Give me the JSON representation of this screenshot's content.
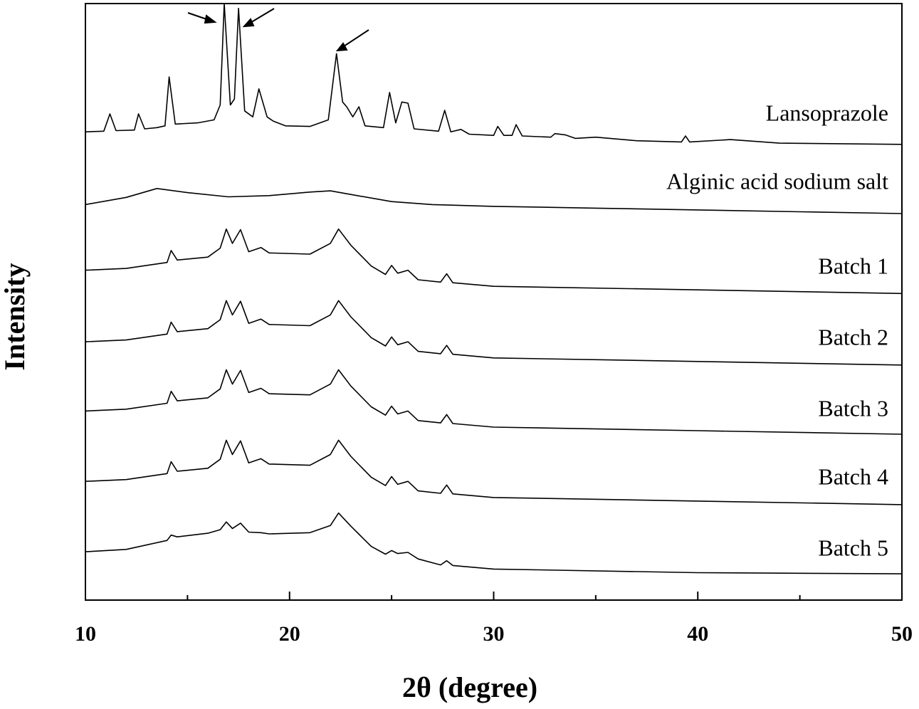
{
  "chart_data": {
    "type": "line",
    "xlabel": "2θ (degree)",
    "ylabel": "Intensity",
    "xlim": [
      10,
      50
    ],
    "xticks": [
      10,
      20,
      30,
      40,
      50
    ],
    "xticks_minor": [
      15,
      25,
      35,
      45
    ],
    "ylim": [
      0,
      100
    ],
    "series": [
      {
        "name": "Lansoprazole",
        "color": "#000000",
        "x": [
          10,
          10.9,
          11.2,
          11.5,
          12.4,
          12.6,
          12.9,
          13.5,
          13.9,
          14.1,
          14.4,
          15.5,
          16.3,
          16.6,
          16.8,
          17.1,
          17.3,
          17.5,
          17.8,
          18.2,
          18.5,
          18.9,
          19.2,
          19.8,
          21.0,
          21.9,
          22.3,
          22.6,
          22.8,
          23.1,
          23.4,
          23.7,
          24.6,
          24.9,
          25.2,
          25.5,
          25.8,
          26.1,
          27.3,
          27.6,
          27.9,
          28.4,
          28.8,
          30.0,
          30.2,
          30.5,
          30.9,
          31.1,
          31.4,
          32.8,
          33.0,
          33.5,
          34.0,
          35.0,
          37,
          39.2,
          39.4,
          39.6,
          41.6,
          44,
          50
        ],
        "values": [
          78.5,
          78.6,
          81.5,
          78.7,
          78.8,
          81.5,
          79.0,
          79.2,
          79.5,
          87.7,
          79.8,
          80.0,
          80.5,
          83,
          100,
          83,
          84,
          99.2,
          82,
          81,
          85.7,
          81,
          80.3,
          79.5,
          79.4,
          80.5,
          91.6,
          83.5,
          82.7,
          81,
          82.7,
          79.5,
          79.2,
          85.1,
          80,
          83.5,
          83.3,
          79.0,
          78.6,
          82.1,
          78.5,
          78.9,
          78.1,
          77.9,
          79.4,
          77.9,
          77.9,
          79.7,
          77.8,
          77.6,
          78.2,
          78.0,
          77.4,
          77.6,
          77.0,
          76.8,
          77.8,
          76.8,
          77.2,
          76.6,
          76.4
        ]
      },
      {
        "name": "Alginic acid sodium salt",
        "color": "#000000",
        "x": [
          10,
          12,
          13.5,
          15,
          17,
          19,
          21,
          22,
          23,
          25,
          27,
          30,
          35,
          40,
          45,
          50
        ],
        "values": [
          66.3,
          67.5,
          69.0,
          68.3,
          67.6,
          67.8,
          68.4,
          68.6,
          68.0,
          66.8,
          66.3,
          66.0,
          65.7,
          65.4,
          65.1,
          64.8
        ]
      },
      {
        "name": "Batch 1",
        "color": "#000000",
        "x": [
          10,
          12,
          14,
          14.2,
          14.5,
          16,
          16.6,
          16.9,
          17.2,
          17.6,
          18,
          18.6,
          19,
          21,
          22,
          22.4,
          23,
          24,
          24.7,
          25,
          25.3,
          25.8,
          26.3,
          27.4,
          27.7,
          28,
          30,
          40,
          50
        ],
        "values": [
          55.3,
          55.6,
          56.6,
          58.6,
          57.0,
          57.5,
          59.0,
          62.2,
          59.8,
          62.1,
          58.4,
          59.1,
          58.2,
          58.0,
          59.8,
          62.2,
          59.5,
          56.0,
          54.6,
          56.1,
          54.8,
          55.3,
          53.7,
          53.3,
          54.7,
          53.2,
          52.6,
          52.0,
          51.4
        ]
      },
      {
        "name": "Batch 2",
        "color": "#000000",
        "x": [
          10,
          12,
          14,
          14.2,
          14.5,
          16,
          16.6,
          16.9,
          17.2,
          17.6,
          18,
          18.6,
          19,
          21,
          22,
          22.4,
          23,
          24,
          24.7,
          25,
          25.3,
          25.8,
          26.3,
          27.4,
          27.7,
          28,
          30,
          40,
          50
        ],
        "values": [
          43.3,
          43.6,
          44.6,
          46.6,
          45.0,
          45.5,
          47.0,
          50.2,
          47.8,
          50.1,
          46.4,
          47.1,
          46.2,
          46.0,
          47.8,
          50.2,
          47.5,
          44.0,
          42.6,
          44.1,
          42.8,
          43.3,
          41.7,
          41.3,
          42.7,
          41.2,
          40.6,
          40.0,
          39.4
        ]
      },
      {
        "name": "Batch 3",
        "color": "#000000",
        "x": [
          10,
          12,
          14,
          14.2,
          14.5,
          16,
          16.6,
          16.9,
          17.2,
          17.6,
          18,
          18.6,
          19,
          21,
          22,
          22.4,
          23,
          24,
          24.7,
          25,
          25.3,
          25.8,
          26.3,
          27.4,
          27.7,
          28,
          30,
          40,
          50
        ],
        "values": [
          31.7,
          32.0,
          33.0,
          35.0,
          33.4,
          33.9,
          35.4,
          38.6,
          36.2,
          38.5,
          34.8,
          35.5,
          34.6,
          34.4,
          36.2,
          38.6,
          35.9,
          32.4,
          31.0,
          32.5,
          31.2,
          31.7,
          30.1,
          29.7,
          31.1,
          29.6,
          29.0,
          28.4,
          27.8
        ]
      },
      {
        "name": "Batch 4",
        "color": "#000000",
        "x": [
          10,
          12,
          14,
          14.2,
          14.5,
          16,
          16.6,
          16.9,
          17.2,
          17.6,
          18,
          18.6,
          19,
          21,
          22,
          22.4,
          23,
          24,
          24.7,
          25,
          25.3,
          25.8,
          26.3,
          27.4,
          27.7,
          28,
          30,
          40,
          50
        ],
        "values": [
          19.9,
          20.2,
          21.2,
          23.2,
          21.6,
          22.1,
          23.6,
          26.8,
          24.4,
          26.7,
          23.0,
          23.7,
          22.8,
          22.6,
          24.4,
          26.8,
          24.1,
          20.6,
          19.2,
          20.7,
          19.4,
          19.9,
          18.3,
          17.9,
          19.3,
          17.8,
          17.2,
          16.6,
          16.0
        ]
      },
      {
        "name": "Batch 5",
        "color": "#000000",
        "x": [
          10,
          12,
          14,
          14.2,
          14.5,
          16,
          16.6,
          16.9,
          17.2,
          17.6,
          18,
          18.6,
          19,
          21,
          22,
          22.4,
          23,
          24,
          24.7,
          25,
          25.3,
          25.8,
          26.3,
          27.4,
          27.7,
          28,
          30,
          40,
          50
        ],
        "values": [
          8.1,
          8.5,
          10.0,
          10.9,
          10.6,
          11.2,
          11.8,
          13.1,
          12.0,
          12.9,
          11.4,
          11.3,
          11.1,
          11.3,
          12.5,
          14.6,
          12.4,
          9.0,
          7.7,
          8.3,
          7.8,
          8.0,
          6.9,
          5.9,
          6.6,
          5.8,
          5.2,
          4.6,
          4.4
        ]
      }
    ]
  }
}
